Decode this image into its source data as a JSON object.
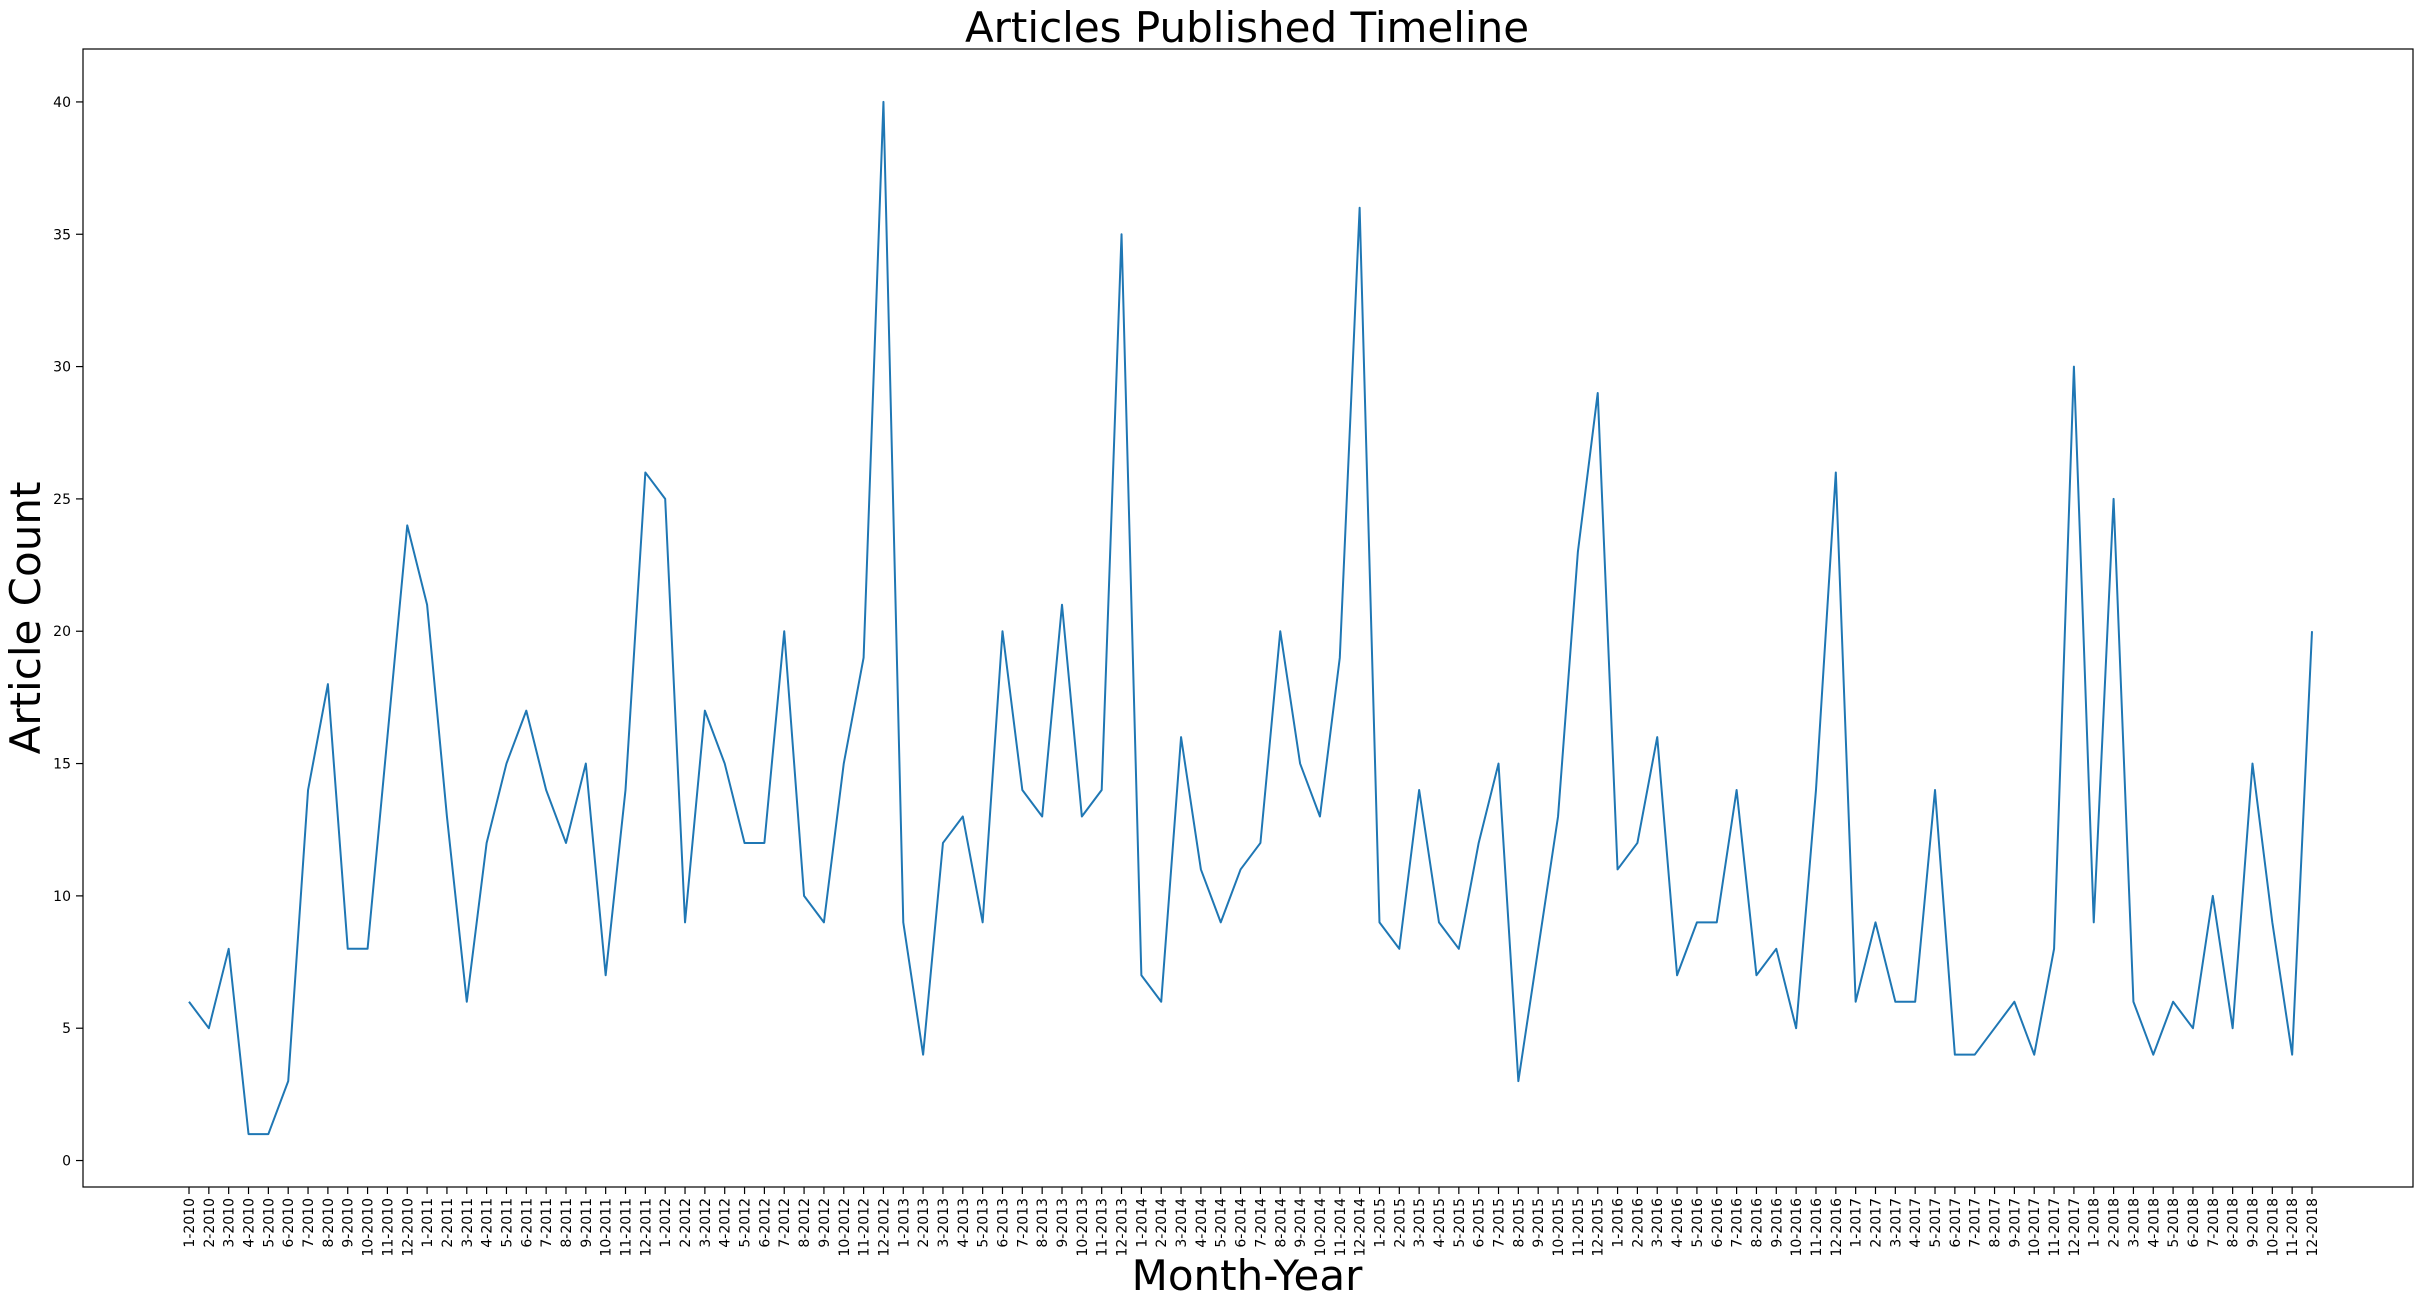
{
  "chart_data": {
    "type": "line",
    "title": "Articles Published Timeline",
    "xlabel": "Month-Year",
    "ylabel": "Article Count",
    "ylim": [
      -1,
      42
    ],
    "yticks": [
      0,
      5,
      10,
      15,
      20,
      25,
      30,
      35,
      40
    ],
    "grid": false,
    "legend": "none",
    "colors": {
      "line": "#1f77b4",
      "axis": "#000000"
    },
    "categories": [
      "1-2010",
      "2-2010",
      "3-2010",
      "4-2010",
      "5-2010",
      "6-2010",
      "7-2010",
      "8-2010",
      "9-2010",
      "10-2010",
      "11-2010",
      "12-2010",
      "1-2011",
      "2-2011",
      "3-2011",
      "4-2011",
      "5-2011",
      "6-2011",
      "7-2011",
      "8-2011",
      "9-2011",
      "10-2011",
      "11-2011",
      "12-2011",
      "1-2012",
      "2-2012",
      "3-2012",
      "4-2012",
      "5-2012",
      "6-2012",
      "7-2012",
      "8-2012",
      "9-2012",
      "10-2012",
      "11-2012",
      "12-2012",
      "1-2013",
      "2-2013",
      "3-2013",
      "4-2013",
      "5-2013",
      "6-2013",
      "7-2013",
      "8-2013",
      "9-2013",
      "10-2013",
      "11-2013",
      "12-2013",
      "1-2014",
      "2-2014",
      "3-2014",
      "4-2014",
      "5-2014",
      "6-2014",
      "7-2014",
      "8-2014",
      "9-2014",
      "10-2014",
      "11-2014",
      "12-2014",
      "1-2015",
      "2-2015",
      "3-2015",
      "4-2015",
      "5-2015",
      "6-2015",
      "7-2015",
      "8-2015",
      "9-2015",
      "10-2015",
      "11-2015",
      "12-2015",
      "1-2016",
      "2-2016",
      "3-2016",
      "4-2016",
      "5-2016",
      "6-2016",
      "7-2016",
      "8-2016",
      "9-2016",
      "10-2016",
      "11-2016",
      "12-2016",
      "1-2017",
      "2-2017",
      "3-2017",
      "4-2017",
      "5-2017",
      "6-2017",
      "7-2017",
      "8-2017",
      "9-2017",
      "10-2017",
      "11-2017",
      "12-2017",
      "1-2018",
      "2-2018",
      "3-2018",
      "4-2018",
      "5-2018",
      "6-2018",
      "7-2018",
      "8-2018",
      "9-2018",
      "10-2018",
      "11-2018",
      "12-2018"
    ],
    "series": [
      {
        "values": [
          6,
          5,
          8,
          1,
          1,
          3,
          14,
          18,
          8,
          8,
          16,
          24,
          21,
          13,
          6,
          12,
          15,
          17,
          14,
          12,
          15,
          7,
          14,
          26,
          25,
          9,
          17,
          15,
          12,
          12,
          20,
          10,
          9,
          15,
          19,
          40,
          9,
          4,
          12,
          13,
          9,
          20,
          14,
          13,
          21,
          13,
          14,
          35,
          7,
          6,
          16,
          11,
          9,
          11,
          12,
          20,
          15,
          13,
          19,
          36,
          9,
          8,
          14,
          9,
          8,
          12,
          15,
          3,
          8,
          13,
          23,
          29,
          11,
          12,
          16,
          7,
          9,
          9,
          14,
          7,
          8,
          5,
          14,
          26,
          6,
          9,
          6,
          6,
          14,
          4,
          4,
          5,
          6,
          4,
          8,
          30,
          9,
          25,
          6,
          4,
          6,
          5,
          10,
          5,
          15,
          9,
          4,
          20
        ]
      }
    ]
  }
}
